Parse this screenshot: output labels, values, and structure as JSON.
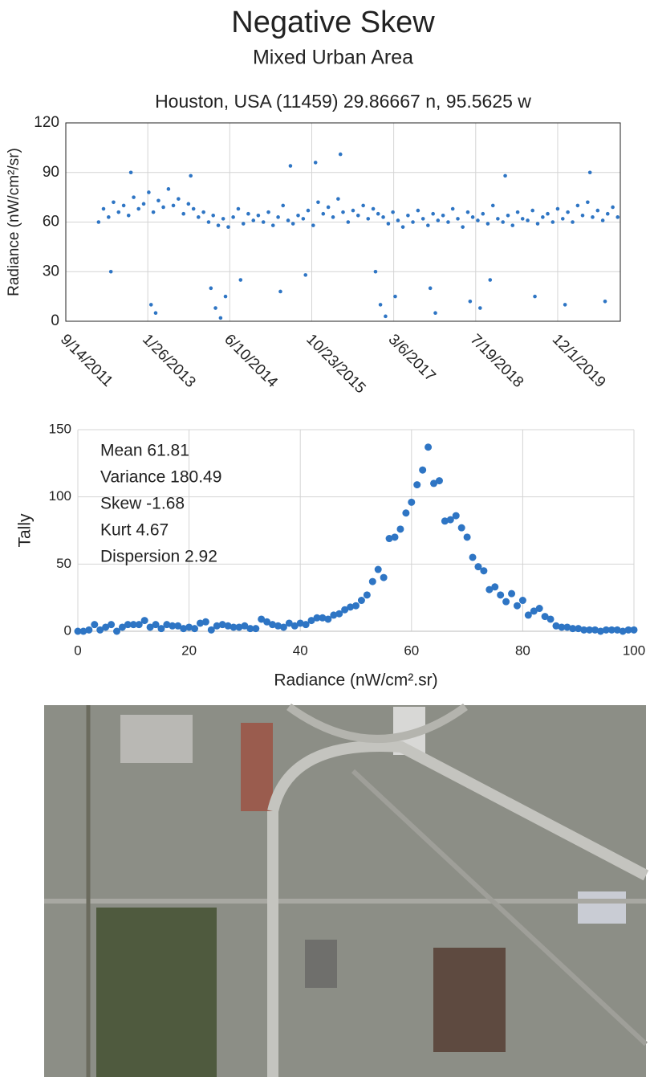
{
  "header": {
    "title": "Negative Skew",
    "subtitle": "Mixed Urban Area"
  },
  "chart_data": [
    {
      "type": "scatter",
      "title": "Houston, USA (11459) 29.86667 n, 95.5625 w",
      "y_label": "Radiance (nW/cm²/sr)",
      "color": "#2e75c4",
      "grid": true,
      "xtick_rotation": 45,
      "xlim": [
        "2011-09-14",
        "2020-12-17"
      ],
      "xticks": [
        {
          "value": "2011-09-14",
          "label": "9/14/2011"
        },
        {
          "value": "2013-01-26",
          "label": "1/26/2013"
        },
        {
          "value": "2014-06-10",
          "label": "6/10/2014"
        },
        {
          "value": "2015-10-23",
          "label": "10/23/2015"
        },
        {
          "value": "2017-03-06",
          "label": "3/6/2017"
        },
        {
          "value": "2018-07-19",
          "label": "7/19/2018"
        },
        {
          "value": "2019-12-01",
          "label": "12/1/2019"
        }
      ],
      "ylim": [
        0,
        120
      ],
      "yticks": [
        0,
        30,
        60,
        90,
        120
      ],
      "x": [
        "2012-04-01",
        "2012-05-01",
        "2012-06-01",
        "2012-07-01",
        "2012-08-01",
        "2012-09-01",
        "2012-10-01",
        "2012-11-01",
        "2012-12-01",
        "2013-01-01",
        "2013-02-01",
        "2013-03-01",
        "2013-04-01",
        "2013-05-01",
        "2013-06-01",
        "2013-07-01",
        "2013-08-01",
        "2013-09-01",
        "2013-10-01",
        "2013-11-01",
        "2013-12-01",
        "2014-01-01",
        "2014-02-01",
        "2014-03-01",
        "2014-04-01",
        "2014-05-01",
        "2014-06-01",
        "2014-07-01",
        "2014-08-01",
        "2014-09-01",
        "2014-10-01",
        "2014-11-01",
        "2014-12-01",
        "2015-01-01",
        "2015-02-01",
        "2015-03-01",
        "2015-04-01",
        "2015-05-01",
        "2015-06-01",
        "2015-07-01",
        "2015-08-01",
        "2015-09-01",
        "2015-10-01",
        "2015-11-01",
        "2015-12-01",
        "2016-01-01",
        "2016-02-01",
        "2016-03-01",
        "2016-04-01",
        "2016-05-01",
        "2016-06-01",
        "2016-07-01",
        "2016-08-01",
        "2016-09-01",
        "2016-10-01",
        "2016-11-01",
        "2016-12-01",
        "2017-01-01",
        "2017-02-01",
        "2017-03-01",
        "2017-04-01",
        "2017-05-01",
        "2017-06-01",
        "2017-07-01",
        "2017-08-01",
        "2017-09-01",
        "2017-10-01",
        "2017-11-01",
        "2017-12-01",
        "2018-01-01",
        "2018-02-01",
        "2018-03-01",
        "2018-04-01",
        "2018-05-01",
        "2018-06-01",
        "2018-07-01",
        "2018-08-01",
        "2018-09-01",
        "2018-10-01",
        "2018-11-01",
        "2018-12-01",
        "2019-01-01",
        "2019-02-01",
        "2019-03-01",
        "2019-04-01",
        "2019-05-01",
        "2019-06-01",
        "2019-07-01",
        "2019-08-01",
        "2019-09-01",
        "2019-10-01",
        "2019-11-01",
        "2019-12-01",
        "2020-01-01",
        "2020-02-01",
        "2020-03-01",
        "2020-04-01",
        "2020-05-01",
        "2020-06-01",
        "2020-07-01",
        "2020-08-01",
        "2020-09-01",
        "2020-10-01",
        "2020-11-01",
        "2020-12-01",
        "2012-06-15",
        "2012-10-15",
        "2013-02-15",
        "2013-03-15",
        "2013-10-15",
        "2014-02-15",
        "2014-03-15",
        "2014-04-15",
        "2014-05-15",
        "2014-08-15",
        "2015-04-15",
        "2015-06-15",
        "2015-09-15",
        "2015-11-15",
        "2016-04-15",
        "2016-11-15",
        "2016-12-15",
        "2017-01-15",
        "2017-03-15",
        "2017-10-15",
        "2017-11-15",
        "2018-06-15",
        "2018-08-15",
        "2018-10-15",
        "2019-01-15",
        "2019-07-15",
        "2020-01-15",
        "2020-06-15",
        "2020-09-15"
      ],
      "values": [
        60,
        68,
        63,
        72,
        66,
        70,
        64,
        75,
        68,
        71,
        78,
        66,
        73,
        69,
        80,
        70,
        74,
        65,
        71,
        68,
        63,
        66,
        60,
        64,
        58,
        62,
        57,
        63,
        68,
        59,
        65,
        61,
        64,
        60,
        66,
        58,
        63,
        70,
        61,
        59,
        64,
        62,
        67,
        58,
        72,
        65,
        69,
        63,
        74,
        66,
        60,
        67,
        64,
        70,
        62,
        68,
        65,
        63,
        59,
        66,
        61,
        57,
        64,
        60,
        67,
        62,
        58,
        65,
        61,
        64,
        60,
        68,
        62,
        57,
        66,
        63,
        61,
        65,
        59,
        70,
        62,
        60,
        64,
        58,
        66,
        62,
        61,
        67,
        59,
        63,
        65,
        60,
        68,
        62,
        66,
        60,
        70,
        64,
        72,
        63,
        67,
        61,
        65,
        69,
        63,
        30,
        90,
        10,
        5,
        88,
        20,
        8,
        2,
        15,
        25,
        18,
        94,
        28,
        96,
        101,
        30,
        10,
        3,
        15,
        20,
        5,
        12,
        8,
        25,
        88,
        15,
        10,
        90,
        12
      ]
    },
    {
      "type": "scatter",
      "x_label": "Radiance (nW/cm².sr)",
      "y_label": "Tally",
      "color": "#2e75c4",
      "grid": true,
      "annotations": [
        "Mean 61.81",
        "Variance 180.49",
        "Skew -1.68",
        "Kurt 4.67",
        "Dispersion 2.92"
      ],
      "xlim": [
        0,
        100
      ],
      "xticks": [
        0,
        20,
        40,
        60,
        80,
        100
      ],
      "ylim": [
        0,
        150
      ],
      "yticks": [
        0,
        50,
        100,
        150
      ],
      "x": [
        0,
        1,
        2,
        3,
        4,
        5,
        6,
        7,
        8,
        9,
        10,
        11,
        12,
        13,
        14,
        15,
        16,
        17,
        18,
        19,
        20,
        21,
        22,
        23,
        24,
        25,
        26,
        27,
        28,
        29,
        30,
        31,
        32,
        33,
        34,
        35,
        36,
        37,
        38,
        39,
        40,
        41,
        42,
        43,
        44,
        45,
        46,
        47,
        48,
        49,
        50,
        51,
        52,
        53,
        54,
        55,
        56,
        57,
        58,
        59,
        60,
        61,
        62,
        63,
        64,
        65,
        66,
        67,
        68,
        69,
        70,
        71,
        72,
        73,
        74,
        75,
        76,
        77,
        78,
        79,
        80,
        81,
        82,
        83,
        84,
        85,
        86,
        87,
        88,
        89,
        90,
        91,
        92,
        93,
        94,
        95,
        96,
        97,
        98,
        99,
        100
      ],
      "values": [
        0,
        0,
        1,
        5,
        1,
        3,
        5,
        0,
        3,
        5,
        5,
        5,
        8,
        3,
        5,
        2,
        5,
        4,
        4,
        2,
        3,
        2,
        6,
        7,
        1,
        4,
        5,
        4,
        3,
        3,
        4,
        2,
        2,
        9,
        7,
        5,
        4,
        3,
        6,
        4,
        6,
        5,
        8,
        10,
        10,
        9,
        12,
        13,
        16,
        18,
        19,
        23,
        27,
        37,
        46,
        40,
        69,
        70,
        76,
        88,
        96,
        109,
        120,
        137,
        110,
        112,
        82,
        83,
        86,
        77,
        70,
        55,
        48,
        45,
        31,
        33,
        27,
        22,
        28,
        19,
        23,
        12,
        15,
        17,
        11,
        9,
        4,
        3,
        3,
        2,
        2,
        1,
        1,
        1,
        0,
        1,
        1,
        1,
        0,
        1,
        1
      ]
    }
  ]
}
